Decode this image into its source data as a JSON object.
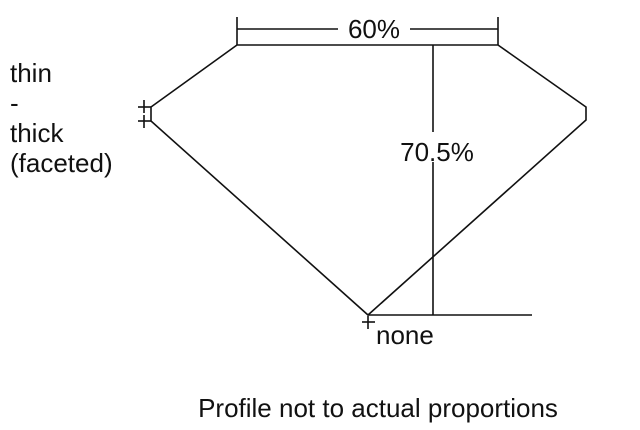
{
  "girdle_label": {
    "line1": "thin",
    "line2": "-",
    "line3": "thick",
    "line4": "(faceted)"
  },
  "table_label": "60%",
  "depth_label": "70.5%",
  "culet_label": "none",
  "caption": "Profile not to actual proportions"
}
